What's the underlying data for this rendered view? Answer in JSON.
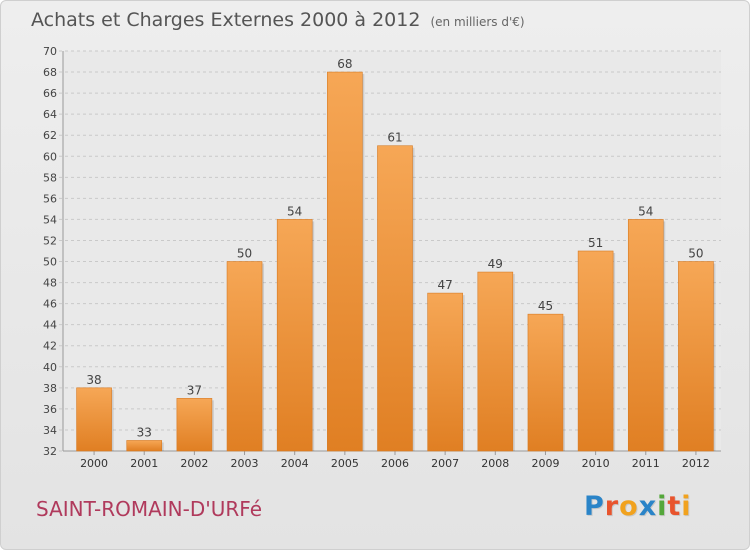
{
  "header": {
    "title": "Achats et Charges Externes 2000 à 2012",
    "subtitle": "(en milliers d'€)"
  },
  "footer": {
    "commune": "SAINT-ROMAIN-D'URFé",
    "logo": "Proxiti"
  },
  "colors": {
    "bar_light": "#f6a756",
    "bar_dark": "#e07f23",
    "logo_letters": [
      "#2a84c8",
      "#e8542d",
      "#f1a21e",
      "#2a84c8",
      "#54a73a",
      "#e8542d",
      "#f1a21e"
    ]
  },
  "chart_data": {
    "type": "bar",
    "categories": [
      "2000",
      "2001",
      "2002",
      "2003",
      "2004",
      "2005",
      "2006",
      "2007",
      "2008",
      "2009",
      "2010",
      "2011",
      "2012"
    ],
    "values": [
      38,
      33,
      37,
      50,
      54,
      68,
      61,
      47,
      49,
      45,
      51,
      54,
      50
    ],
    "ylim": [
      32,
      70
    ],
    "yticks": [
      32,
      34,
      36,
      38,
      40,
      42,
      44,
      46,
      48,
      50,
      52,
      54,
      56,
      58,
      60,
      62,
      64,
      66,
      68,
      70
    ],
    "grid": true,
    "data_labels": true
  }
}
